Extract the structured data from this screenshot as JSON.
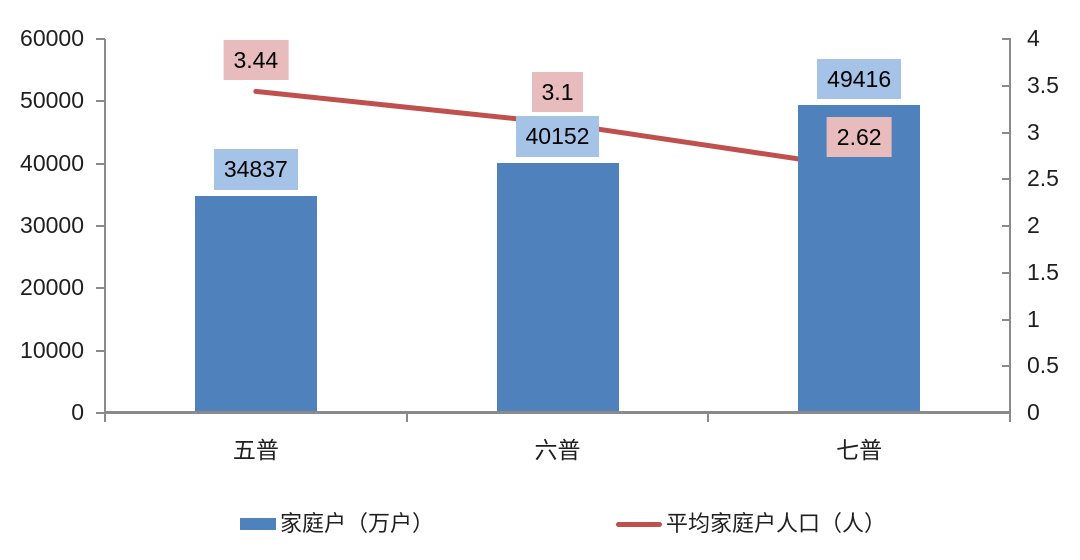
{
  "chart_data": {
    "type": "combo_bar_line",
    "title": "",
    "categories": [
      "五普",
      "六普",
      "七普"
    ],
    "series": [
      {
        "name": "家庭户（万户）",
        "type": "bar",
        "axis": "left",
        "values": [
          34837,
          40152,
          49416
        ],
        "labels": [
          "34837",
          "40152",
          "49416"
        ],
        "color": "#4F81BD",
        "label_bg": "#A5C3E7"
      },
      {
        "name": "平均家庭户人口（人）",
        "type": "line",
        "axis": "right",
        "values": [
          3.44,
          3.1,
          2.62
        ],
        "labels": [
          "3.44",
          "3.1",
          "2.62"
        ],
        "color": "#C0504D",
        "label_bg": "#E8BBBC"
      }
    ],
    "left_axis": {
      "min": 0,
      "max": 60000,
      "step": 10000,
      "tick_labels": [
        "0",
        "10000",
        "20000",
        "30000",
        "40000",
        "50000",
        "60000"
      ]
    },
    "right_axis": {
      "min": 0,
      "max": 4,
      "step": 0.5,
      "tick_labels": [
        "0",
        "0.5",
        "1",
        "1.5",
        "2",
        "2.5",
        "3",
        "3.5",
        "4"
      ]
    },
    "legend_position": "bottom",
    "grid": false
  },
  "styles": {
    "axis_color": "#8A8A8A",
    "text_color": "#1F1F1F",
    "data_label_text_color": "#000000",
    "background": "#FFFFFF"
  }
}
